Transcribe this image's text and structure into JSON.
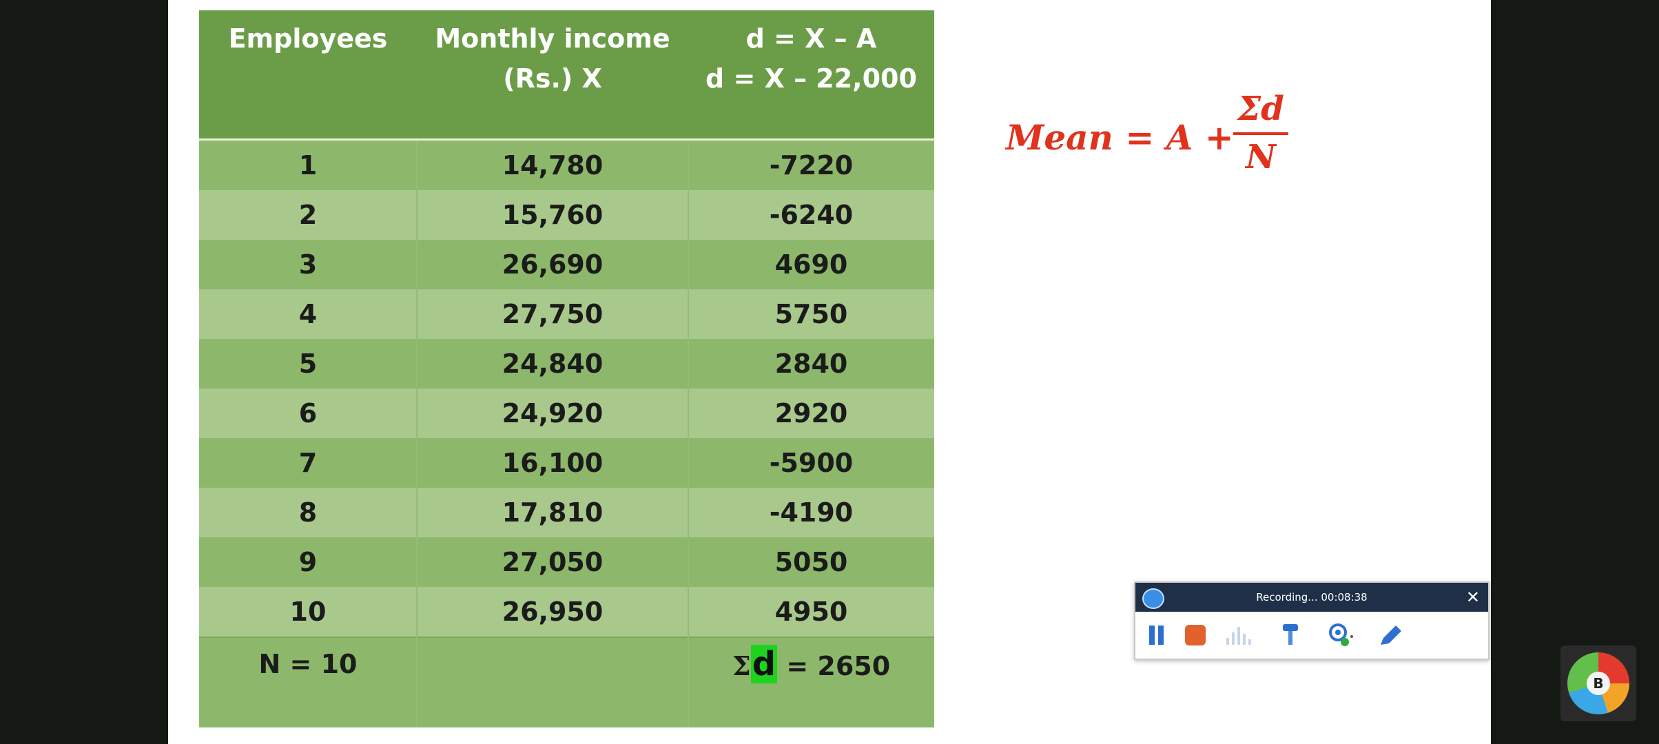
{
  "table": {
    "headers": [
      {
        "line1": "Employees",
        "line2": ""
      },
      {
        "line1": "Monthly income",
        "line2": "(Rs.)  X"
      },
      {
        "line1": "d = X – A",
        "line2": "d = X – 22,000"
      }
    ],
    "rows": [
      {
        "employee": "1",
        "income": "14,780",
        "d": "-7220"
      },
      {
        "employee": "2",
        "income": "15,760",
        "d": "-6240"
      },
      {
        "employee": "3",
        "income": "26,690",
        "d": "4690"
      },
      {
        "employee": "4",
        "income": "27,750",
        "d": "5750"
      },
      {
        "employee": "5",
        "income": "24,840",
        "d": "2840"
      },
      {
        "employee": "6",
        "income": "24,920",
        "d": "2920"
      },
      {
        "employee": "7",
        "income": "16,100",
        "d": "-5900"
      },
      {
        "employee": "8",
        "income": "17,810",
        "d": "-4190"
      },
      {
        "employee": "9",
        "income": "27,050",
        "d": "5050"
      },
      {
        "employee": "10",
        "income": "26,950",
        "d": "4950"
      }
    ],
    "footer": {
      "n_label": "N = 10",
      "sum_symbol": "Σ",
      "sum_var": "d",
      "sum_value": "= 2650"
    }
  },
  "formula": {
    "lhs": "Mean = A +",
    "numerator": "Σd",
    "denominator": "N"
  },
  "recorder": {
    "title": "Recording... 00:08:38",
    "close": "✕",
    "logo_icon": "recorder-logo-icon",
    "buttons": [
      "pause-icon",
      "stop-icon",
      "audio-level-icon",
      "microphone-icon",
      "webcam-icon",
      "pen-icon"
    ]
  },
  "badge": {
    "letter": "B"
  },
  "colors": {
    "header_green": "#6b9d48",
    "row_dark": "#8db86b",
    "row_light": "#a8c98b",
    "formula_red": "#e0321c",
    "highlight": "#1fd21f"
  }
}
